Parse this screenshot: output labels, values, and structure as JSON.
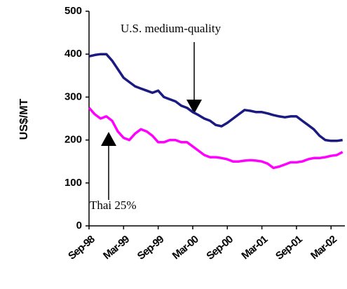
{
  "chart_data": {
    "type": "line",
    "y_label": "US$/MT",
    "annotations": [
      "U.S. medium-quality",
      "Thai 25%"
    ],
    "categories": [
      "Sep-98",
      null,
      null,
      null,
      null,
      null,
      "Mar-99",
      null,
      null,
      null,
      null,
      null,
      "Sep-99",
      null,
      null,
      null,
      null,
      null,
      "Mar-00",
      null,
      null,
      null,
      null,
      null,
      "Sep-00",
      null,
      null,
      null,
      null,
      null,
      "Mar-01",
      null,
      null,
      null,
      null,
      null,
      "Sep-01",
      null,
      null,
      null,
      null,
      null,
      "Mar-02",
      null,
      null
    ],
    "series": [
      {
        "name": "U.S. medium-quality",
        "color": "#1a1a80",
        "values": [
          395,
          398,
          400,
          400,
          385,
          365,
          345,
          335,
          325,
          320,
          315,
          310,
          315,
          300,
          295,
          290,
          280,
          275,
          265,
          258,
          250,
          245,
          235,
          232,
          240,
          250,
          260,
          270,
          268,
          265,
          265,
          262,
          258,
          255,
          253,
          255,
          255,
          245,
          235,
          225,
          210,
          200,
          198,
          198,
          200
        ]
      },
      {
        "name": "Thai 25%",
        "color": "#ff00ff",
        "values": [
          275,
          260,
          250,
          255,
          245,
          220,
          205,
          200,
          215,
          225,
          220,
          210,
          195,
          195,
          200,
          200,
          195,
          195,
          185,
          175,
          165,
          160,
          160,
          158,
          155,
          150,
          150,
          152,
          153,
          152,
          150,
          145,
          135,
          138,
          143,
          148,
          148,
          150,
          155,
          158,
          158,
          160,
          163,
          165,
          172
        ]
      }
    ],
    "ylim": [
      0,
      500
    ],
    "yticks": [
      0,
      100,
      200,
      300,
      400,
      500
    ],
    "grid": false
  }
}
